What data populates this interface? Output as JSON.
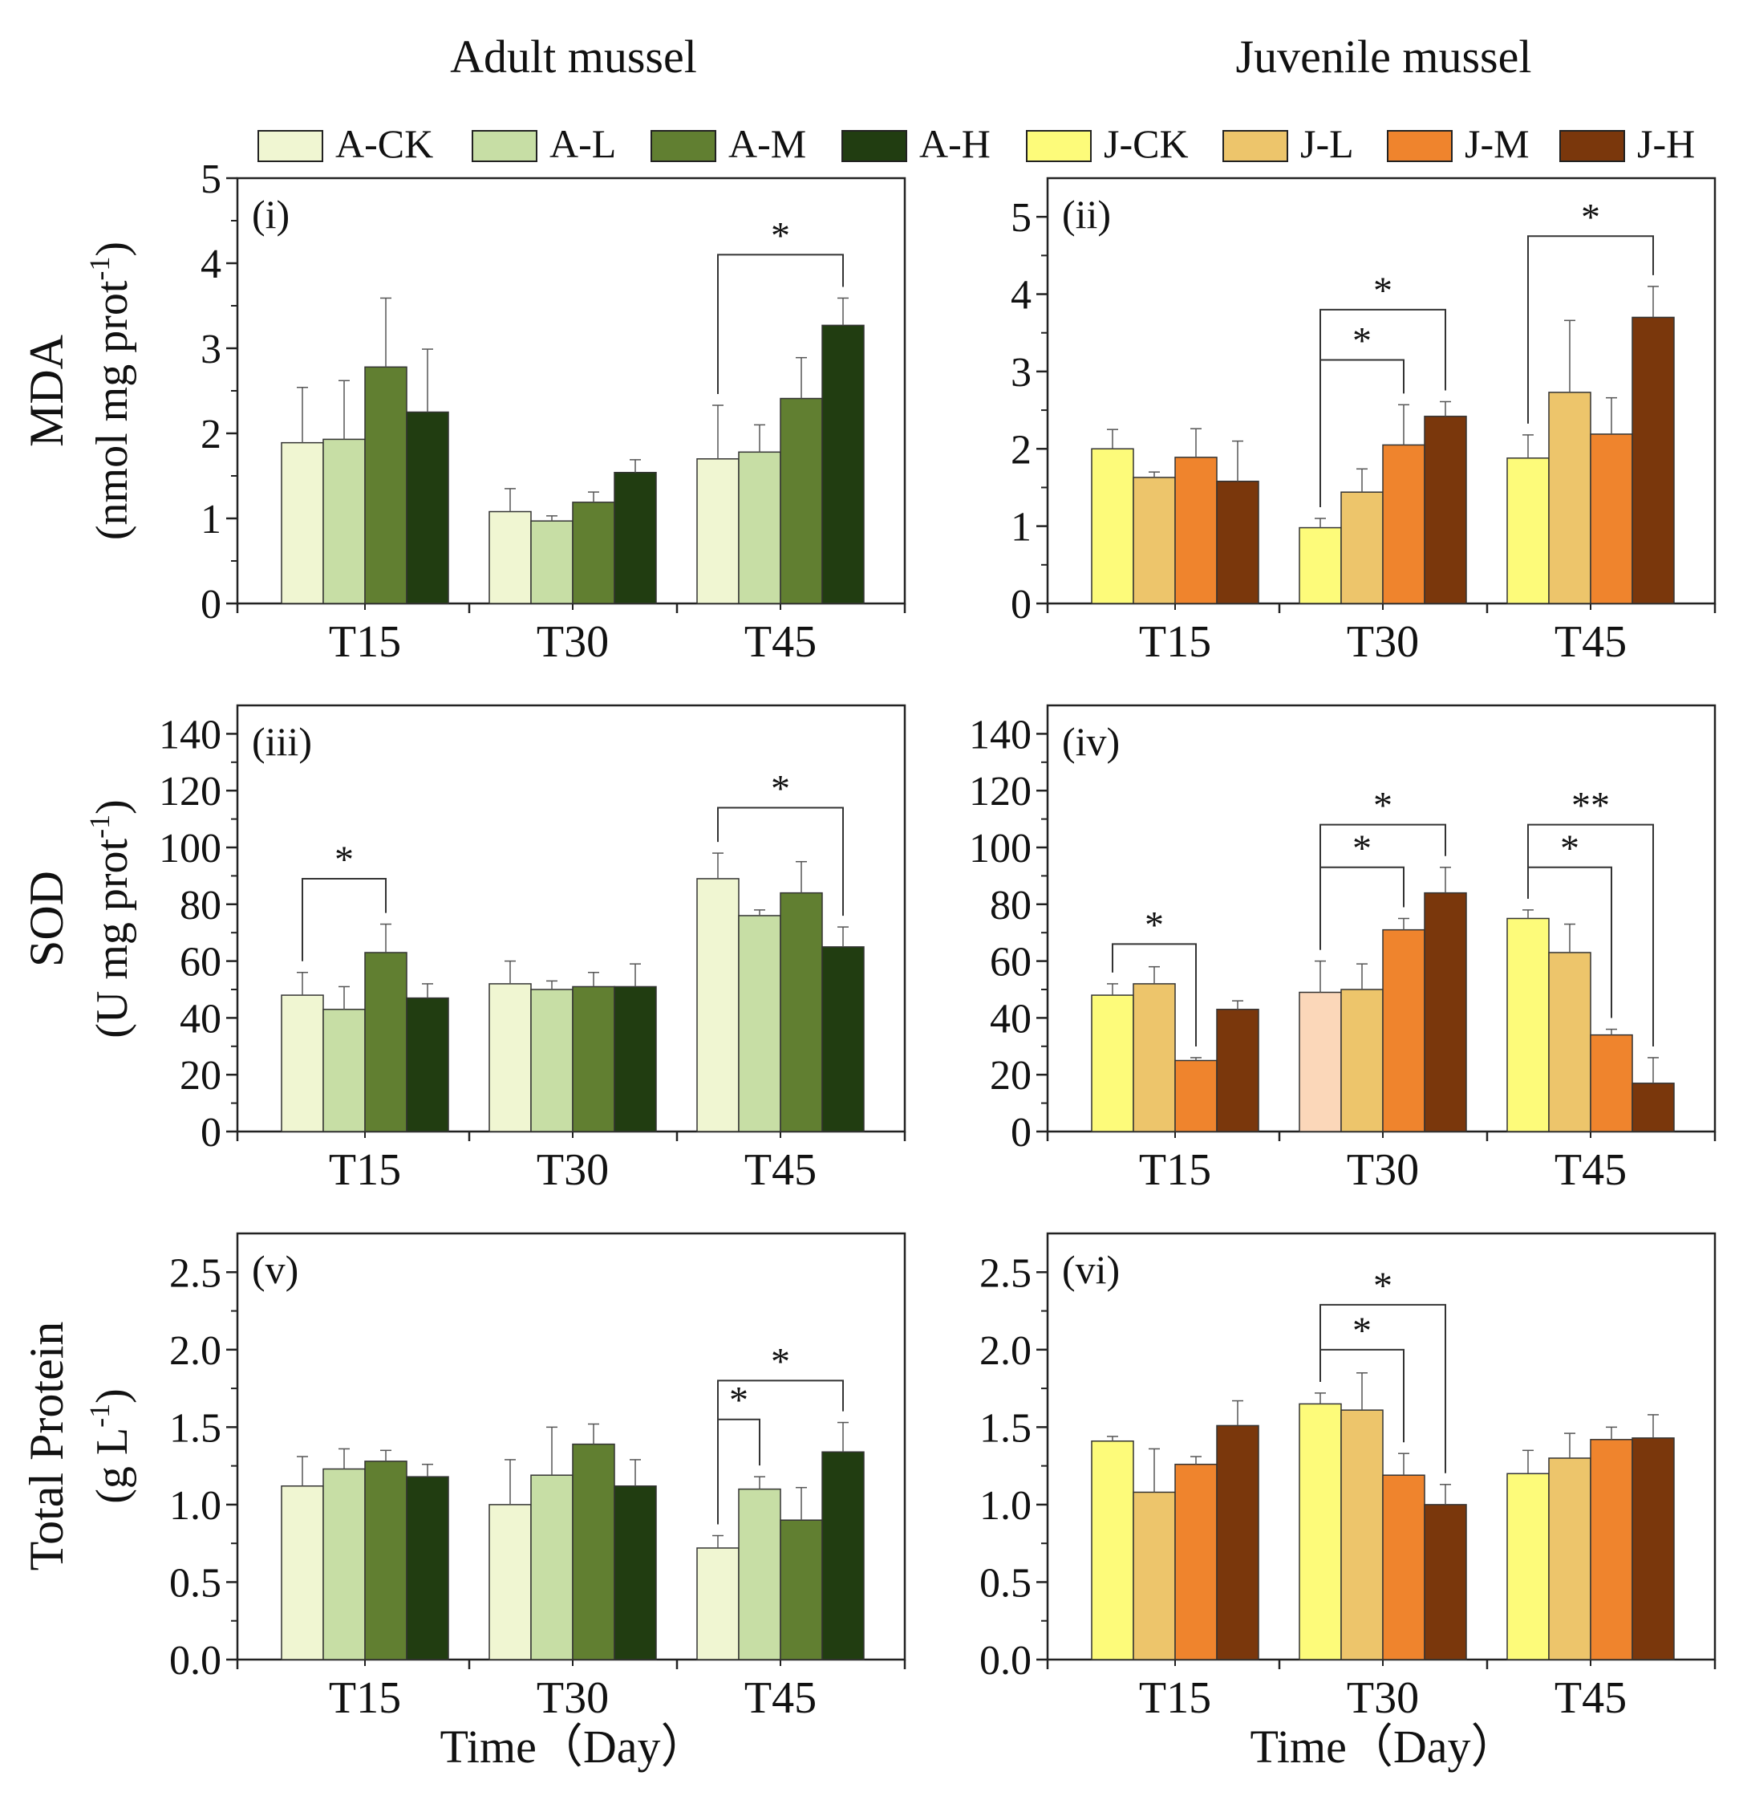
{
  "titles": {
    "adult": "Adult mussel",
    "juvenile": "Juvenile mussel"
  },
  "legend": [
    {
      "label": "A-CK",
      "color": "#f0f6d2"
    },
    {
      "label": "A-L",
      "color": "#c7dea5"
    },
    {
      "label": "A-M",
      "color": "#617f31"
    },
    {
      "label": "A-H",
      "color": "#213d11"
    },
    {
      "label": "J-CK",
      "color": "#fdfb7a"
    },
    {
      "label": "J-L",
      "color": "#edc56b"
    },
    {
      "label": "J-M",
      "color": "#ef842d"
    },
    {
      "label": "J-H",
      "color": "#7a370c"
    }
  ],
  "row_labels": [
    {
      "main": "MDA",
      "unit": "(nmol mg prot",
      "sup": "-1",
      "close": ")"
    },
    {
      "main": "SOD",
      "unit": "(U mg prot",
      "sup": "-1",
      "close": ")"
    },
    {
      "main": "Total Protein",
      "unit": "(g L",
      "sup": "-1",
      "close": ")"
    }
  ],
  "xlabel": "Time（Day）",
  "chart_data": [
    {
      "panel": "(i)",
      "type": "bar",
      "ylim": [
        0,
        5
      ],
      "yticks": [
        "0",
        "1",
        "2",
        "3",
        "4",
        "5"
      ],
      "ytick_values": [
        0,
        1,
        2,
        3,
        4,
        5
      ],
      "categories": [
        "T15",
        "T30",
        "T45"
      ],
      "series": [
        {
          "name": "A-CK",
          "color": "#f0f6d2",
          "values": [
            1.89,
            1.08,
            1.7
          ],
          "errors": [
            0.65,
            0.27,
            0.63
          ]
        },
        {
          "name": "A-L",
          "color": "#c7dea5",
          "values": [
            1.93,
            0.97,
            1.78
          ],
          "errors": [
            0.69,
            0.06,
            0.32
          ]
        },
        {
          "name": "A-M",
          "color": "#617f31",
          "values": [
            2.78,
            1.19,
            2.41
          ],
          "errors": [
            0.81,
            0.12,
            0.48
          ]
        },
        {
          "name": "A-H",
          "color": "#213d11",
          "values": [
            2.25,
            1.54,
            3.27
          ],
          "errors": [
            0.74,
            0.15,
            0.32
          ]
        }
      ],
      "significance": [
        {
          "group": 2,
          "from": 0,
          "to": 3,
          "y": 4.1,
          "label": "*"
        }
      ]
    },
    {
      "panel": "(ii)",
      "type": "bar",
      "ylim": [
        0,
        5.5
      ],
      "yticks": [
        "0",
        "1",
        "2",
        "3",
        "4",
        "5"
      ],
      "ytick_values": [
        0,
        1,
        2,
        3,
        4,
        5
      ],
      "categories": [
        "T15",
        "T30",
        "T45"
      ],
      "series": [
        {
          "name": "J-CK",
          "color": "#fdfb7a",
          "values": [
            2.0,
            0.98,
            1.88
          ],
          "errors": [
            0.25,
            0.12,
            0.3
          ]
        },
        {
          "name": "J-L",
          "color": "#edc56b",
          "values": [
            1.63,
            1.44,
            2.73
          ],
          "errors": [
            0.07,
            0.3,
            0.93
          ]
        },
        {
          "name": "J-M",
          "color": "#ef842d",
          "values": [
            1.89,
            2.05,
            2.19
          ],
          "errors": [
            0.37,
            0.52,
            0.47
          ]
        },
        {
          "name": "J-H",
          "color": "#7a370c",
          "values": [
            1.58,
            2.42,
            3.7
          ],
          "errors": [
            0.52,
            0.19,
            0.4
          ]
        }
      ],
      "significance": [
        {
          "group": 1,
          "from": 0,
          "to": 2,
          "y": 3.15,
          "label": "*"
        },
        {
          "group": 1,
          "from": 0,
          "to": 3,
          "y": 3.8,
          "label": "*"
        },
        {
          "group": 2,
          "from": 0,
          "to": 3,
          "y": 4.75,
          "label": "*"
        }
      ]
    },
    {
      "panel": "(iii)",
      "type": "bar",
      "ylim": [
        0,
        150
      ],
      "yticks": [
        "0",
        "20",
        "40",
        "60",
        "80",
        "100",
        "120",
        "140"
      ],
      "ytick_values": [
        0,
        20,
        40,
        60,
        80,
        100,
        120,
        140
      ],
      "categories": [
        "T15",
        "T30",
        "T45"
      ],
      "series": [
        {
          "name": "A-CK",
          "color": "#f0f6d2",
          "values": [
            48,
            52,
            89
          ],
          "errors": [
            8,
            8,
            9
          ]
        },
        {
          "name": "A-L",
          "color": "#c7dea5",
          "values": [
            43,
            50,
            76
          ],
          "errors": [
            8,
            3,
            2
          ]
        },
        {
          "name": "A-M",
          "color": "#617f31",
          "values": [
            63,
            51,
            84
          ],
          "errors": [
            10,
            5,
            11
          ]
        },
        {
          "name": "A-H",
          "color": "#213d11",
          "values": [
            47,
            51,
            65
          ],
          "errors": [
            5,
            8,
            7
          ]
        }
      ],
      "significance": [
        {
          "group": 0,
          "from": 0,
          "to": 2,
          "y": 89,
          "label": "*"
        },
        {
          "group": 2,
          "from": 0,
          "to": 3,
          "y": 114,
          "label": "*"
        }
      ]
    },
    {
      "panel": "(iv)",
      "type": "bar",
      "ylim": [
        0,
        150
      ],
      "yticks": [
        "0",
        "20",
        "40",
        "60",
        "80",
        "100",
        "120",
        "140"
      ],
      "ytick_values": [
        0,
        20,
        40,
        60,
        80,
        100,
        120,
        140
      ],
      "categories": [
        "T15",
        "T30",
        "T45"
      ],
      "series": [
        {
          "name": "J-CK",
          "color": "#fdfb7a",
          "values": [
            48,
            49,
            75
          ],
          "errors": [
            4,
            11,
            3
          ],
          "point_colors": {
            "1": "#fbd7b9"
          }
        },
        {
          "name": "J-L",
          "color": "#edc56b",
          "values": [
            52,
            50,
            63
          ],
          "errors": [
            6,
            9,
            10
          ]
        },
        {
          "name": "J-M",
          "color": "#ef842d",
          "values": [
            25,
            71,
            34
          ],
          "errors": [
            1,
            4,
            2
          ]
        },
        {
          "name": "J-H",
          "color": "#7a370c",
          "values": [
            43,
            84,
            17
          ],
          "errors": [
            3,
            9,
            9
          ]
        }
      ],
      "significance": [
        {
          "group": 0,
          "from": 0,
          "to": 2,
          "y": 66,
          "label": "*"
        },
        {
          "group": 1,
          "from": 0,
          "to": 2,
          "y": 93,
          "label": "*"
        },
        {
          "group": 1,
          "from": 0,
          "to": 3,
          "y": 108,
          "label": "*"
        },
        {
          "group": 2,
          "from": 0,
          "to": 2,
          "y": 93,
          "label": "*"
        },
        {
          "group": 2,
          "from": 0,
          "to": 3,
          "y": 108,
          "label": "**"
        }
      ]
    },
    {
      "panel": "(v)",
      "type": "bar",
      "ylim": [
        0,
        2.75
      ],
      "yticks": [
        "0.0",
        "0.5",
        "1.0",
        "1.5",
        "2.0",
        "2.5"
      ],
      "ytick_values": [
        0,
        0.5,
        1.0,
        1.5,
        2.0,
        2.5
      ],
      "categories": [
        "T15",
        "T30",
        "T45"
      ],
      "series": [
        {
          "name": "A-CK",
          "color": "#f0f6d2",
          "values": [
            1.12,
            1.0,
            0.72
          ],
          "errors": [
            0.19,
            0.29,
            0.08
          ]
        },
        {
          "name": "A-L",
          "color": "#c7dea5",
          "values": [
            1.23,
            1.19,
            1.1
          ],
          "errors": [
            0.13,
            0.31,
            0.08
          ]
        },
        {
          "name": "A-M",
          "color": "#617f31",
          "values": [
            1.28,
            1.39,
            0.9
          ],
          "errors": [
            0.07,
            0.13,
            0.21
          ]
        },
        {
          "name": "A-H",
          "color": "#213d11",
          "values": [
            1.18,
            1.12,
            1.34
          ],
          "errors": [
            0.08,
            0.17,
            0.19
          ]
        }
      ],
      "significance": [
        {
          "group": 2,
          "from": 0,
          "to": 1,
          "y": 1.55,
          "label": "*"
        },
        {
          "group": 2,
          "from": 0,
          "to": 3,
          "y": 1.8,
          "label": "*"
        }
      ]
    },
    {
      "panel": "(vi)",
      "type": "bar",
      "ylim": [
        0,
        2.75
      ],
      "yticks": [
        "0.0",
        "0.5",
        "1.0",
        "1.5",
        "2.0",
        "2.5"
      ],
      "ytick_values": [
        0,
        0.5,
        1.0,
        1.5,
        2.0,
        2.5
      ],
      "categories": [
        "T15",
        "T30",
        "T45"
      ],
      "series": [
        {
          "name": "J-CK",
          "color": "#fdfb7a",
          "values": [
            1.41,
            1.65,
            1.2
          ],
          "errors": [
            0.03,
            0.07,
            0.15
          ]
        },
        {
          "name": "J-L",
          "color": "#edc56b",
          "values": [
            1.08,
            1.61,
            1.3
          ],
          "errors": [
            0.28,
            0.24,
            0.16
          ]
        },
        {
          "name": "J-M",
          "color": "#ef842d",
          "values": [
            1.26,
            1.19,
            1.42
          ],
          "errors": [
            0.05,
            0.14,
            0.08
          ]
        },
        {
          "name": "J-H",
          "color": "#7a370c",
          "values": [
            1.51,
            1.0,
            1.43
          ],
          "errors": [
            0.16,
            0.13,
            0.15
          ]
        }
      ],
      "significance": [
        {
          "group": 1,
          "from": 0,
          "to": 2,
          "y": 2.0,
          "label": "*"
        },
        {
          "group": 1,
          "from": 0,
          "to": 3,
          "y": 2.29,
          "label": "*"
        }
      ]
    }
  ]
}
